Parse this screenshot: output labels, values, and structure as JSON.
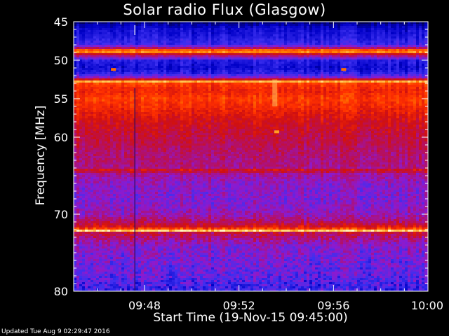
{
  "chart_data": {
    "type": "heatmap",
    "title": "Solar radio Flux (Glasgow)",
    "xlabel": "Start Time (19-Nov-15 09:45:00)",
    "ylabel": "Frequency [MHz]",
    "x_range": [
      "09:45",
      "10:00"
    ],
    "y_range": [
      45,
      80
    ],
    "y_ticks": [
      45,
      50,
      55,
      60,
      70,
      80
    ],
    "y_minor_ticks": [
      46,
      47,
      48,
      49,
      51,
      52,
      53,
      54,
      56,
      57,
      58,
      59,
      61,
      62,
      63,
      64,
      65,
      66,
      67,
      68,
      69,
      71,
      72,
      73,
      74,
      75,
      76,
      77,
      78,
      79
    ],
    "x_ticks": [
      "09:48",
      "09:52",
      "09:56",
      "10:00"
    ],
    "x_minor_ticks": [
      "09:46",
      "09:47",
      "09:49",
      "09:50",
      "09:51",
      "09:53",
      "09:54",
      "09:55",
      "09:57",
      "09:58",
      "09:59"
    ],
    "colormap": [
      "#000050",
      "#0000c8",
      "#3c2ff0",
      "#8c1ad0",
      "#b01070",
      "#d01010",
      "#ff3000",
      "#ff8000",
      "#ffd060",
      "#fff8d8"
    ],
    "frequency_profile": [
      {
        "mhz": 45.0,
        "level": 0.02
      },
      {
        "mhz": 45.5,
        "level": 0.1
      },
      {
        "mhz": 46.0,
        "level": 0.14
      },
      {
        "mhz": 47.0,
        "level": 0.17
      },
      {
        "mhz": 48.0,
        "level": 0.22
      },
      {
        "mhz": 48.6,
        "level": 0.55
      },
      {
        "mhz": 48.8,
        "level": 0.97
      },
      {
        "mhz": 49.1,
        "level": 0.6
      },
      {
        "mhz": 49.4,
        "level": 0.45
      },
      {
        "mhz": 50.0,
        "level": 0.18
      },
      {
        "mhz": 51.0,
        "level": 0.14
      },
      {
        "mhz": 51.8,
        "level": 0.2
      },
      {
        "mhz": 52.4,
        "level": 0.38
      },
      {
        "mhz": 52.7,
        "level": 0.9
      },
      {
        "mhz": 53.0,
        "level": 0.68
      },
      {
        "mhz": 54.0,
        "level": 0.62
      },
      {
        "mhz": 55.0,
        "level": 0.68
      },
      {
        "mhz": 56.0,
        "level": 0.64
      },
      {
        "mhz": 58.0,
        "level": 0.55
      },
      {
        "mhz": 60.0,
        "level": 0.5
      },
      {
        "mhz": 62.0,
        "level": 0.45
      },
      {
        "mhz": 64.0,
        "level": 0.42
      },
      {
        "mhz": 64.3,
        "level": 0.58
      },
      {
        "mhz": 64.7,
        "level": 0.4
      },
      {
        "mhz": 66.0,
        "level": 0.34
      },
      {
        "mhz": 68.0,
        "level": 0.32
      },
      {
        "mhz": 70.0,
        "level": 0.36
      },
      {
        "mhz": 71.0,
        "level": 0.46
      },
      {
        "mhz": 71.8,
        "level": 0.6
      },
      {
        "mhz": 72.1,
        "level": 0.95
      },
      {
        "mhz": 72.4,
        "level": 0.5
      },
      {
        "mhz": 74.0,
        "level": 0.34
      },
      {
        "mhz": 76.0,
        "level": 0.3
      },
      {
        "mhz": 78.0,
        "level": 0.27
      },
      {
        "mhz": 80.0,
        "level": 0.2
      }
    ],
    "bursts": [
      {
        "time": "09:46:40",
        "mhz": 51.2,
        "level": 0.75
      },
      {
        "time": "09:56:25",
        "mhz": 51.2,
        "level": 0.75
      },
      {
        "time": "09:53:35",
        "mhz": 59.3,
        "level": 0.82
      }
    ],
    "vertical_features": [
      {
        "time": "09:47:35",
        "kind": "dark"
      },
      {
        "time": "09:53:30",
        "kind": "bright"
      }
    ],
    "grid": false,
    "legend": "none"
  },
  "footer": "Updated Tue Aug  9 02:29:47 2016"
}
